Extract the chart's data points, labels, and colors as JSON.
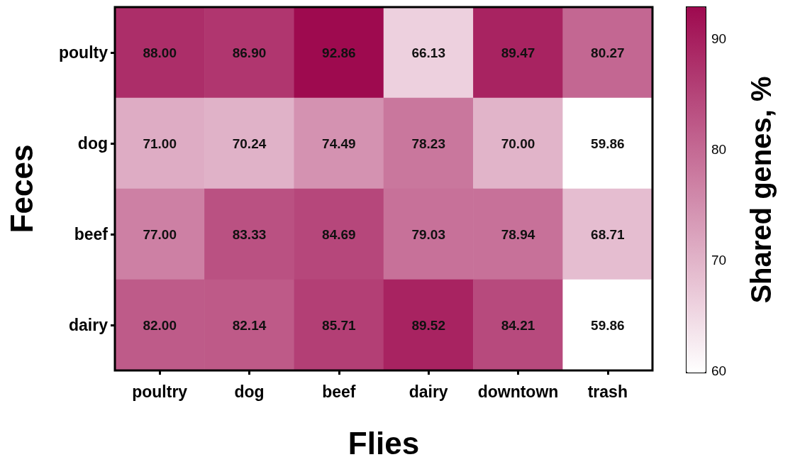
{
  "chart_data": {
    "type": "heatmap",
    "xlabel": "Flies",
    "ylabel": "Feces",
    "clabel": "Shared genes, %",
    "categories": [
      "poultry",
      "dog",
      "beef",
      "dairy",
      "downtown",
      "trash"
    ],
    "y_categories": [
      "poulty",
      "dog",
      "beef",
      "dairy"
    ],
    "cells": [
      [
        88.0,
        86.9,
        92.86,
        66.13,
        89.47,
        80.27
      ],
      [
        71.0,
        70.24,
        74.49,
        78.23,
        70.0,
        59.86
      ],
      [
        77.0,
        83.33,
        84.69,
        79.03,
        78.94,
        68.71
      ],
      [
        82.0,
        82.14,
        85.71,
        89.52,
        84.21,
        59.86
      ]
    ],
    "cell_labels": [
      [
        "88.00",
        "86.90",
        "92.86",
        "66.13",
        "89.47",
        "80.27"
      ],
      [
        "71.00",
        "70.24",
        "74.49",
        "78.23",
        "70.00",
        "59.86"
      ],
      [
        "77.00",
        "83.33",
        "84.69",
        "79.03",
        "78.94",
        "68.71"
      ],
      [
        "82.00",
        "82.14",
        "85.71",
        "89.52",
        "84.21",
        "59.86"
      ]
    ],
    "colors": [
      "#ffffff",
      "#9e0a4f"
    ],
    "clim": [
      59.86,
      92.86
    ],
    "cticks": [
      60,
      70,
      80,
      90
    ]
  }
}
